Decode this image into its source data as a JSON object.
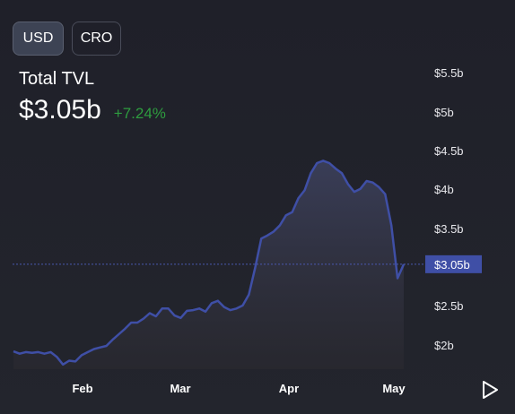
{
  "toggles": {
    "usd_label": "USD",
    "cro_label": "CRO",
    "active": "USD"
  },
  "header": {
    "title": "Total TVL",
    "value": "$3.05b",
    "change": "+7.24%"
  },
  "colors": {
    "line": "#3f4fa6",
    "positive": "#2e9c3f",
    "badge": "#3f4fa6",
    "reference": "#4a58b0"
  },
  "play_icon": "play-icon",
  "chart_data": {
    "type": "area",
    "ylabel_unit": "b",
    "y_ticks": [
      "$5.5b",
      "$5b",
      "$4.5b",
      "$4b",
      "$3.5b",
      "$2.5b",
      "$2b"
    ],
    "y_tick_values": [
      5.5,
      5.0,
      4.5,
      4.0,
      3.5,
      2.5,
      2.0
    ],
    "x_ticks": [
      "Feb",
      "Mar",
      "Apr",
      "May"
    ],
    "current_label": "$3.05b",
    "current_value": 3.05,
    "series": [
      {
        "values": [
          1.93,
          1.9,
          1.92,
          1.91,
          1.92,
          1.9,
          1.92,
          1.86,
          1.76,
          1.81,
          1.8,
          1.88,
          1.92,
          1.96,
          1.98,
          2.0,
          2.08,
          2.15,
          2.22,
          2.3,
          2.3,
          2.35,
          2.42,
          2.38,
          2.48,
          2.48,
          2.39,
          2.36,
          2.45,
          2.46,
          2.48,
          2.44,
          2.55,
          2.58,
          2.5,
          2.46,
          2.48,
          2.52,
          2.66,
          3.0,
          3.38,
          3.42,
          3.47,
          3.55,
          3.68,
          3.72,
          3.9,
          4.0,
          4.22,
          4.35,
          4.38,
          4.35,
          4.28,
          4.22,
          4.08,
          3.98,
          4.02,
          4.12,
          4.1,
          4.04,
          3.95,
          3.55,
          2.87,
          3.05
        ]
      }
    ]
  }
}
